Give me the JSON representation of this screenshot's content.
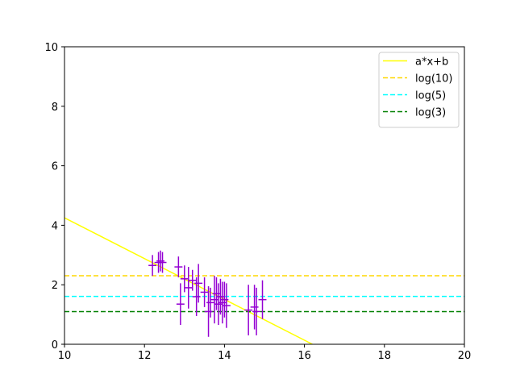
{
  "chart_data": {
    "type": "scatter",
    "xlim": [
      10,
      20
    ],
    "ylim": [
      0,
      10
    ],
    "x_ticks": [
      10,
      12,
      14,
      16,
      18,
      20
    ],
    "y_ticks": [
      0,
      2,
      4,
      6,
      8,
      10
    ],
    "grid": false,
    "legend_position": "top-right",
    "series": [
      {
        "name": "a*x+b",
        "kind": "line",
        "color": "#ffff00",
        "style": "solid",
        "x": [
          10.0,
          16.2
        ],
        "y": [
          4.25,
          0.0
        ]
      },
      {
        "name": "log(10)",
        "kind": "hline",
        "color": "#ffd700",
        "style": "dashed",
        "y": 2.3026
      },
      {
        "name": "log(5)",
        "kind": "hline",
        "color": "#00ffff",
        "style": "dashed",
        "y": 1.6094
      },
      {
        "name": "log(3)",
        "kind": "hline",
        "color": "#008000",
        "style": "dashed",
        "y": 1.0986
      },
      {
        "kind": "errorbar",
        "color": "#9400d3",
        "x": [
          12.2,
          12.35,
          12.4,
          12.45,
          12.85,
          12.9,
          13.0,
          13.1,
          13.2,
          13.3,
          13.35,
          13.5,
          13.6,
          13.65,
          13.75,
          13.8,
          13.85,
          13.9,
          13.95,
          14.0,
          14.05,
          14.6,
          14.75,
          14.8,
          14.95
        ],
        "y": [
          2.65,
          2.75,
          2.8,
          2.75,
          2.6,
          1.35,
          2.2,
          1.9,
          2.15,
          1.6,
          2.05,
          1.75,
          1.1,
          1.4,
          1.5,
          1.7,
          1.35,
          1.6,
          1.4,
          1.5,
          1.3,
          1.15,
          1.25,
          1.1,
          1.5
        ],
        "yerr": [
          0.35,
          0.35,
          0.35,
          0.35,
          0.35,
          0.7,
          0.45,
          0.7,
          0.35,
          0.65,
          0.65,
          0.5,
          0.85,
          0.5,
          0.8,
          0.55,
          0.7,
          0.6,
          0.7,
          0.6,
          0.75,
          0.85,
          0.75,
          0.8,
          0.65
        ],
        "xerr": 0.1
      }
    ]
  },
  "colors": {
    "axes": "#000000",
    "background": "#ffffff"
  }
}
